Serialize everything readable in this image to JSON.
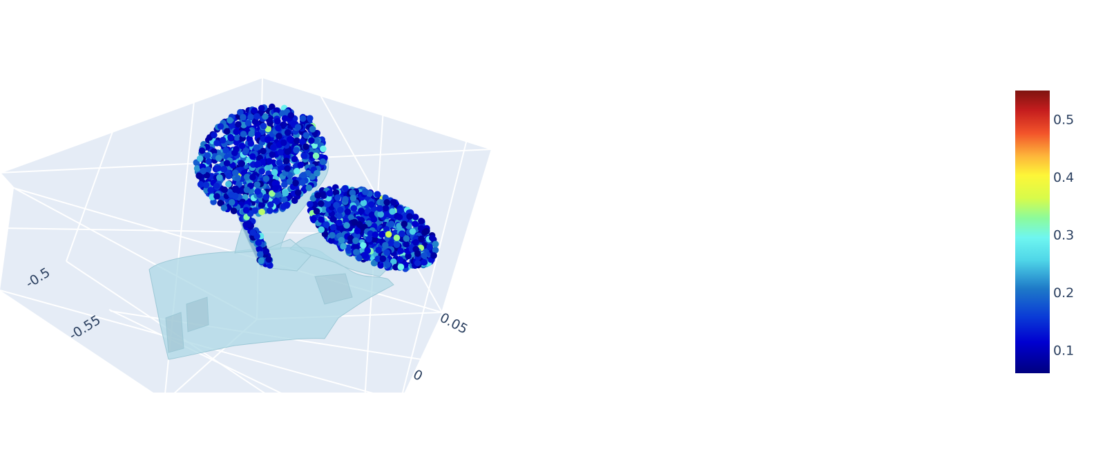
{
  "chart_data": {
    "type": "scatter3d",
    "title": "",
    "scene": {
      "background": "#e5ecf6",
      "grid": true,
      "axis_ticks": {
        "left_axis": [
          "-0.5",
          "-0.55"
        ],
        "right_axis": [
          "0.05",
          "0"
        ]
      }
    },
    "colorscale": "jet",
    "colorbar": {
      "ticks": [
        0.1,
        0.2,
        0.3,
        0.4,
        0.5
      ],
      "tick_labels": [
        "0.1",
        "0.2",
        "0.3",
        "0.4",
        "0.5"
      ],
      "range": [
        0.06,
        0.55
      ]
    },
    "series": [
      {
        "mode": "markers",
        "values_range": [
          0.06,
          0.36
        ],
        "values_typical": 0.15
      },
      {
        "mode": "mesh",
        "color": "#add8e6"
      }
    ]
  }
}
